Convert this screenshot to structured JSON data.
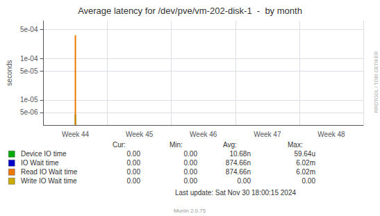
{
  "chart_data": {
    "type": "bar",
    "title": "Average latency for /dev/pve/vm-202-disk-1  -  by month",
    "ylabel": "seconds",
    "categories": [
      "Week 44",
      "Week 45",
      "Week 46",
      "Week 47",
      "Week 48"
    ],
    "series": [
      {
        "name": "Device IO time",
        "color": "#00aa00",
        "values": [
          4.5e-06,
          null,
          null,
          null,
          null
        ],
        "stats": [
          "0.00",
          "0.00",
          "10.68n",
          "59.64u"
        ]
      },
      {
        "name": "IO Wait time",
        "color": "#0000cc",
        "values": [
          null,
          null,
          null,
          null,
          null
        ],
        "stats": [
          "0.00",
          "0.00",
          "874.66n",
          "6.02m"
        ]
      },
      {
        "name": "Read IO Wait time",
        "color": "#ee7700",
        "values": [
          0.00036,
          null,
          null,
          null,
          null
        ],
        "stats": [
          "0.00",
          "0.00",
          "874.66n",
          "6.02m"
        ]
      },
      {
        "name": "Write IO Wait time",
        "color": "#ccaa00",
        "values": [
          null,
          null,
          null,
          null,
          null
        ],
        "stats": [
          "0.00",
          "0.00",
          "0.00",
          "0.00"
        ]
      }
    ],
    "stats_header": [
      "Cur:",
      "Min:",
      "Avg:",
      "Max:"
    ],
    "log": "y",
    "ylim": [
      2.5e-06,
      0.0008
    ],
    "yticks": [
      {
        "value": 5e-06,
        "label": "5e-06"
      },
      {
        "value": 1e-05,
        "label": "1e-05"
      },
      {
        "value": 5e-05,
        "label": "5e-05"
      },
      {
        "value": 0.0001,
        "label": "1e-04"
      },
      {
        "value": 0.0005,
        "label": "5e-04"
      }
    ],
    "grid": true,
    "annotations": [
      "Last update: Sat Nov 30 18:00:15 2024",
      "Munin 2.0.75",
      "RRDTOOL / TOBI OETIKER"
    ]
  }
}
